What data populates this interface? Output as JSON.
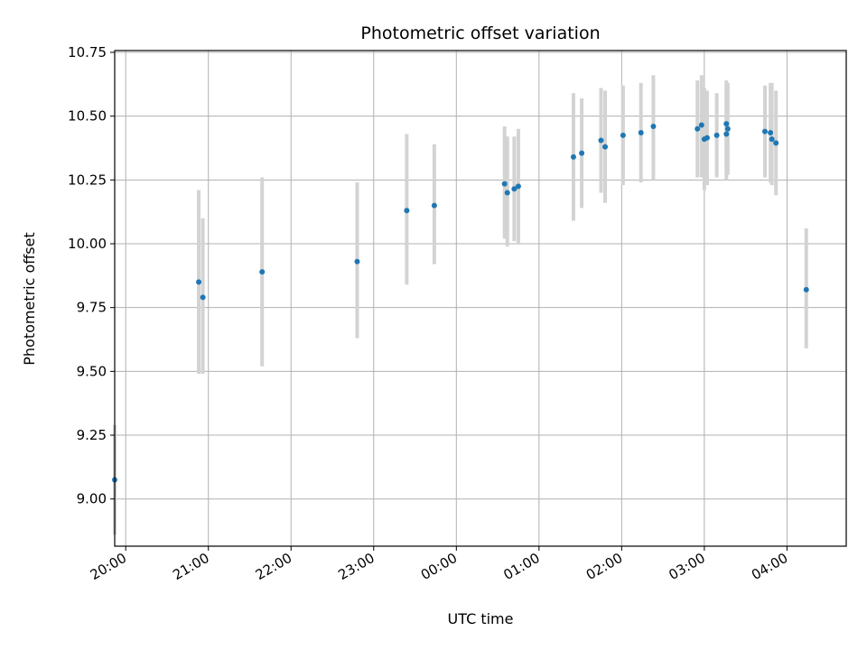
{
  "chart_data": {
    "type": "scatter",
    "title": "Photometric offset variation",
    "xlabel": "UTC time",
    "ylabel": "Photometric offset",
    "grid": true,
    "x_axis_kind": "time",
    "xlim": [
      "19:52",
      "04:43"
    ],
    "ylim": [
      8.815,
      10.757
    ],
    "x_ticks": [
      "20:00",
      "21:00",
      "22:00",
      "23:00",
      "00:00",
      "01:00",
      "02:00",
      "03:00",
      "04:00"
    ],
    "y_ticks": [
      "9.00",
      "9.25",
      "9.50",
      "9.75",
      "10.00",
      "10.25",
      "10.50",
      "10.75"
    ],
    "marker_color": "#1f77b4",
    "errorbar_color": "#d3d3d3",
    "points": [
      {
        "t": "19:52",
        "y": 9.075,
        "lo": 8.86,
        "hi": 9.29
      },
      {
        "t": "20:53",
        "y": 9.85,
        "lo": 9.49,
        "hi": 10.21
      },
      {
        "t": "20:56",
        "y": 9.79,
        "lo": 9.49,
        "hi": 10.1
      },
      {
        "t": "21:39",
        "y": 9.89,
        "lo": 9.52,
        "hi": 10.26
      },
      {
        "t": "22:48",
        "y": 9.93,
        "lo": 9.63,
        "hi": 10.24
      },
      {
        "t": "23:24",
        "y": 10.13,
        "lo": 9.84,
        "hi": 10.43
      },
      {
        "t": "23:44",
        "y": 10.15,
        "lo": 9.92,
        "hi": 10.39
      },
      {
        "t": "00:35",
        "y": 10.235,
        "lo": 10.02,
        "hi": 10.46
      },
      {
        "t": "00:37",
        "y": 10.2,
        "lo": 9.99,
        "hi": 10.42
      },
      {
        "t": "00:42",
        "y": 10.215,
        "lo": 10.01,
        "hi": 10.42
      },
      {
        "t": "00:45",
        "y": 10.225,
        "lo": 10.0,
        "hi": 10.45
      },
      {
        "t": "01:25",
        "y": 10.34,
        "lo": 10.09,
        "hi": 10.59
      },
      {
        "t": "01:31",
        "y": 10.355,
        "lo": 10.14,
        "hi": 10.57
      },
      {
        "t": "01:45",
        "y": 10.405,
        "lo": 10.2,
        "hi": 10.61
      },
      {
        "t": "01:48",
        "y": 10.38,
        "lo": 10.16,
        "hi": 10.6
      },
      {
        "t": "02:01",
        "y": 10.425,
        "lo": 10.23,
        "hi": 10.62
      },
      {
        "t": "02:14",
        "y": 10.435,
        "lo": 10.24,
        "hi": 10.63
      },
      {
        "t": "02:23",
        "y": 10.46,
        "lo": 10.25,
        "hi": 10.66
      },
      {
        "t": "02:55",
        "y": 10.45,
        "lo": 10.26,
        "hi": 10.64
      },
      {
        "t": "02:58",
        "y": 10.465,
        "lo": 10.26,
        "hi": 10.66
      },
      {
        "t": "03:00",
        "y": 10.41,
        "lo": 10.21,
        "hi": 10.61
      },
      {
        "t": "03:02",
        "y": 10.415,
        "lo": 10.23,
        "hi": 10.6
      },
      {
        "t": "03:09",
        "y": 10.425,
        "lo": 10.26,
        "hi": 10.59
      },
      {
        "t": "03:16",
        "y": 10.47,
        "lo": 10.3,
        "hi": 10.64
      },
      {
        "t": "03:16",
        "y": 10.43,
        "lo": 10.25,
        "hi": 10.62
      },
      {
        "t": "03:17",
        "y": 10.45,
        "lo": 10.27,
        "hi": 10.63
      },
      {
        "t": "03:44",
        "y": 10.44,
        "lo": 10.26,
        "hi": 10.62
      },
      {
        "t": "03:48",
        "y": 10.435,
        "lo": 10.24,
        "hi": 10.63
      },
      {
        "t": "03:49",
        "y": 10.41,
        "lo": 10.23,
        "hi": 10.63
      },
      {
        "t": "03:52",
        "y": 10.395,
        "lo": 10.19,
        "hi": 10.6
      },
      {
        "t": "04:14",
        "y": 9.82,
        "lo": 9.59,
        "hi": 10.06
      }
    ]
  }
}
